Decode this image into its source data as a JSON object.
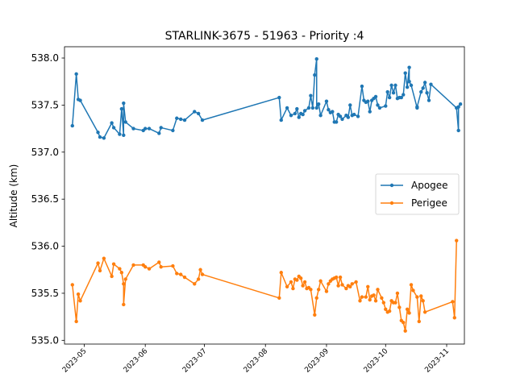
{
  "chart_data": {
    "type": "line",
    "title": "STARLINK-3675 - 51963 - Priority :4",
    "xlabel": "",
    "ylabel": "Altitude (km)",
    "ylim": [
      534.96,
      538.12
    ],
    "xlim": [
      "2023-04-21",
      "2023-11-10"
    ],
    "grid": false,
    "legend_position": "center-right",
    "x_ticks": [
      "2023-05",
      "2023-06",
      "2023-07",
      "2023-08",
      "2023-09",
      "2023-10",
      "2023-11"
    ],
    "y_ticks": [
      "535.0",
      "535.5",
      "536.0",
      "536.5",
      "537.0",
      "537.5",
      "538.0"
    ],
    "series": [
      {
        "name": "Apogee",
        "color": "#1f77b4",
        "points": [
          [
            "2023-04-25",
            537.28
          ],
          [
            "2023-04-27",
            537.83
          ],
          [
            "2023-04-28",
            537.56
          ],
          [
            "2023-04-29",
            537.55
          ],
          [
            "2023-05-08",
            537.21
          ],
          [
            "2023-05-09",
            537.16
          ],
          [
            "2023-05-11",
            537.15
          ],
          [
            "2023-05-15",
            537.31
          ],
          [
            "2023-05-16",
            537.26
          ],
          [
            "2023-05-19",
            537.19
          ],
          [
            "2023-05-20",
            537.46
          ],
          [
            "2023-05-21",
            537.18
          ],
          [
            "2023-05-21",
            537.52
          ],
          [
            "2023-05-22",
            537.32
          ],
          [
            "2023-05-26",
            537.25
          ],
          [
            "2023-05-31",
            537.23
          ],
          [
            "2023-06-01",
            537.25
          ],
          [
            "2023-06-03",
            537.25
          ],
          [
            "2023-06-08",
            537.2
          ],
          [
            "2023-06-09",
            537.26
          ],
          [
            "2023-06-15",
            537.23
          ],
          [
            "2023-06-17",
            537.36
          ],
          [
            "2023-06-19",
            537.35
          ],
          [
            "2023-06-21",
            537.34
          ],
          [
            "2023-06-26",
            537.43
          ],
          [
            "2023-06-28",
            537.41
          ],
          [
            "2023-06-30",
            537.34
          ],
          [
            "2023-08-08",
            537.58
          ],
          [
            "2023-08-09",
            537.34
          ],
          [
            "2023-08-12",
            537.47
          ],
          [
            "2023-08-14",
            537.39
          ],
          [
            "2023-08-16",
            537.41
          ],
          [
            "2023-08-17",
            537.46
          ],
          [
            "2023-08-18",
            537.37
          ],
          [
            "2023-08-19",
            537.41
          ],
          [
            "2023-08-20",
            537.4
          ],
          [
            "2023-08-21",
            537.44
          ],
          [
            "2023-08-23",
            537.47
          ],
          [
            "2023-08-24",
            537.6
          ],
          [
            "2023-08-25",
            537.47
          ],
          [
            "2023-08-26",
            537.82
          ],
          [
            "2023-08-27",
            537.99
          ],
          [
            "2023-08-27",
            537.47
          ],
          [
            "2023-08-28",
            537.51
          ],
          [
            "2023-08-29",
            537.39
          ],
          [
            "2023-09-01",
            537.54
          ],
          [
            "2023-09-02",
            537.45
          ],
          [
            "2023-09-03",
            537.42
          ],
          [
            "2023-09-04",
            537.43
          ],
          [
            "2023-09-05",
            537.32
          ],
          [
            "2023-09-06",
            537.32
          ],
          [
            "2023-09-07",
            537.4
          ],
          [
            "2023-09-08",
            537.38
          ],
          [
            "2023-09-09",
            537.35
          ],
          [
            "2023-09-11",
            537.39
          ],
          [
            "2023-09-12",
            537.37
          ],
          [
            "2023-09-13",
            537.5
          ],
          [
            "2023-09-14",
            537.39
          ],
          [
            "2023-09-15",
            537.4
          ],
          [
            "2023-09-17",
            537.38
          ],
          [
            "2023-09-19",
            537.7
          ],
          [
            "2023-09-20",
            537.55
          ],
          [
            "2023-09-21",
            537.53
          ],
          [
            "2023-09-22",
            537.54
          ],
          [
            "2023-09-23",
            537.43
          ],
          [
            "2023-09-24",
            537.55
          ],
          [
            "2023-09-25",
            537.57
          ],
          [
            "2023-09-26",
            537.59
          ],
          [
            "2023-09-27",
            537.5
          ],
          [
            "2023-09-28",
            537.47
          ],
          [
            "2023-10-01",
            537.49
          ],
          [
            "2023-10-02",
            537.64
          ],
          [
            "2023-10-03",
            537.58
          ],
          [
            "2023-10-04",
            537.71
          ],
          [
            "2023-10-05",
            537.63
          ],
          [
            "2023-10-06",
            537.71
          ],
          [
            "2023-10-07",
            537.57
          ],
          [
            "2023-10-08",
            537.58
          ],
          [
            "2023-10-09",
            537.58
          ],
          [
            "2023-10-10",
            537.61
          ],
          [
            "2023-10-11",
            537.84
          ],
          [
            "2023-10-12",
            537.69
          ],
          [
            "2023-10-13",
            537.9
          ],
          [
            "2023-10-13",
            537.75
          ],
          [
            "2023-10-14",
            537.71
          ],
          [
            "2023-10-17",
            537.47
          ],
          [
            "2023-10-17",
            537.48
          ],
          [
            "2023-10-19",
            537.64
          ],
          [
            "2023-10-20",
            537.68
          ],
          [
            "2023-10-21",
            537.74
          ],
          [
            "2023-10-22",
            537.63
          ],
          [
            "2023-10-23",
            537.55
          ],
          [
            "2023-10-24",
            537.72
          ],
          [
            "2023-11-06",
            537.47
          ],
          [
            "2023-11-07",
            537.23
          ],
          [
            "2023-11-07",
            537.48
          ],
          [
            "2023-11-08",
            537.51
          ]
        ]
      },
      {
        "name": "Perigee",
        "color": "#ff7f0e",
        "points": [
          [
            "2023-04-25",
            535.59
          ],
          [
            "2023-04-27",
            535.2
          ],
          [
            "2023-04-28",
            535.49
          ],
          [
            "2023-04-29",
            535.42
          ],
          [
            "2023-05-08",
            535.82
          ],
          [
            "2023-05-09",
            535.74
          ],
          [
            "2023-05-11",
            535.87
          ],
          [
            "2023-05-15",
            535.68
          ],
          [
            "2023-05-16",
            535.81
          ],
          [
            "2023-05-19",
            535.76
          ],
          [
            "2023-05-20",
            535.72
          ],
          [
            "2023-05-21",
            535.6
          ],
          [
            "2023-05-21",
            535.38
          ],
          [
            "2023-05-22",
            535.65
          ],
          [
            "2023-05-26",
            535.8
          ],
          [
            "2023-05-31",
            535.8
          ],
          [
            "2023-06-01",
            535.78
          ],
          [
            "2023-06-03",
            535.76
          ],
          [
            "2023-06-08",
            535.83
          ],
          [
            "2023-06-09",
            535.78
          ],
          [
            "2023-06-15",
            535.79
          ],
          [
            "2023-06-17",
            535.71
          ],
          [
            "2023-06-19",
            535.7
          ],
          [
            "2023-06-21",
            535.67
          ],
          [
            "2023-06-26",
            535.6
          ],
          [
            "2023-06-28",
            535.65
          ],
          [
            "2023-06-29",
            535.75
          ],
          [
            "2023-06-30",
            535.7
          ],
          [
            "2023-08-08",
            535.45
          ],
          [
            "2023-08-09",
            535.72
          ],
          [
            "2023-08-12",
            535.57
          ],
          [
            "2023-08-14",
            535.62
          ],
          [
            "2023-08-15",
            535.55
          ],
          [
            "2023-08-16",
            535.65
          ],
          [
            "2023-08-17",
            535.64
          ],
          [
            "2023-08-18",
            535.68
          ],
          [
            "2023-08-19",
            535.66
          ],
          [
            "2023-08-20",
            535.58
          ],
          [
            "2023-08-21",
            535.62
          ],
          [
            "2023-08-22",
            535.55
          ],
          [
            "2023-08-23",
            535.56
          ],
          [
            "2023-08-24",
            535.54
          ],
          [
            "2023-08-26",
            535.27
          ],
          [
            "2023-08-27",
            535.45
          ],
          [
            "2023-08-28",
            535.54
          ],
          [
            "2023-08-29",
            535.63
          ],
          [
            "2023-09-01",
            535.52
          ],
          [
            "2023-09-02",
            535.6
          ],
          [
            "2023-09-03",
            535.63
          ],
          [
            "2023-09-04",
            535.65
          ],
          [
            "2023-09-05",
            535.66
          ],
          [
            "2023-09-06",
            535.67
          ],
          [
            "2023-09-07",
            535.58
          ],
          [
            "2023-09-08",
            535.67
          ],
          [
            "2023-09-09",
            535.59
          ],
          [
            "2023-09-11",
            535.55
          ],
          [
            "2023-09-12",
            535.58
          ],
          [
            "2023-09-13",
            535.57
          ],
          [
            "2023-09-14",
            535.6
          ],
          [
            "2023-09-16",
            535.62
          ],
          [
            "2023-09-18",
            535.42
          ],
          [
            "2023-09-19",
            535.46
          ],
          [
            "2023-09-21",
            535.46
          ],
          [
            "2023-09-22",
            535.57
          ],
          [
            "2023-09-23",
            535.43
          ],
          [
            "2023-09-24",
            535.47
          ],
          [
            "2023-09-25",
            535.48
          ],
          [
            "2023-09-26",
            535.42
          ],
          [
            "2023-09-27",
            535.54
          ],
          [
            "2023-09-29",
            535.45
          ],
          [
            "2023-09-30",
            535.4
          ],
          [
            "2023-10-01",
            535.33
          ],
          [
            "2023-10-02",
            535.3
          ],
          [
            "2023-10-03",
            535.31
          ],
          [
            "2023-10-04",
            535.42
          ],
          [
            "2023-10-05",
            535.4
          ],
          [
            "2023-10-06",
            535.4
          ],
          [
            "2023-10-07",
            535.5
          ],
          [
            "2023-10-08",
            535.35
          ],
          [
            "2023-10-09",
            535.21
          ],
          [
            "2023-10-10",
            535.19
          ],
          [
            "2023-10-11",
            535.1
          ],
          [
            "2023-10-12",
            535.33
          ],
          [
            "2023-10-13",
            535.29
          ],
          [
            "2023-10-14",
            535.59
          ],
          [
            "2023-10-15",
            535.53
          ],
          [
            "2023-10-17",
            535.46
          ],
          [
            "2023-10-18",
            535.2
          ],
          [
            "2023-10-19",
            535.47
          ],
          [
            "2023-10-20",
            535.42
          ],
          [
            "2023-10-21",
            535.3
          ],
          [
            "2023-11-04",
            535.41
          ],
          [
            "2023-11-05",
            535.24
          ],
          [
            "2023-11-06",
            536.06
          ]
        ]
      }
    ]
  }
}
